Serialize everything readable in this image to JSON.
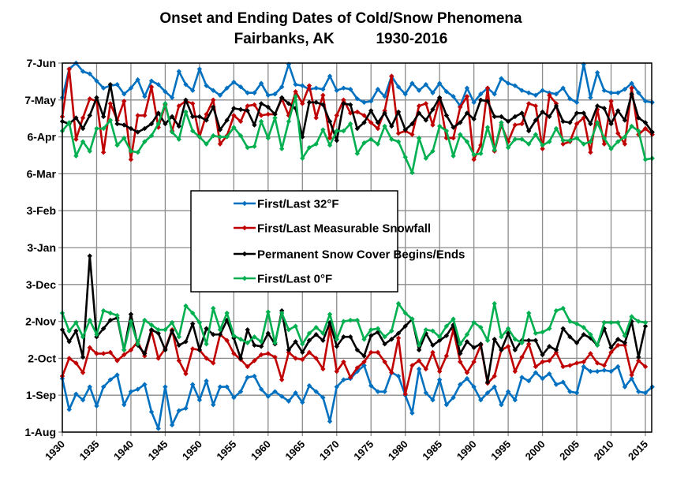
{
  "chart_data": {
    "type": "line",
    "title": [
      "Onset and Ending Dates of Cold/Snow Phenomena",
      "Fairbanks, AK          1930-2016"
    ],
    "xlabel": "",
    "ylabel": "",
    "x_start": 1930,
    "x_end": 2016,
    "xlim": [
      1930,
      2016
    ],
    "x_ticks": [
      1930,
      1935,
      1940,
      1945,
      1950,
      1955,
      1960,
      1965,
      1970,
      1975,
      1980,
      1985,
      1990,
      1995,
      2000,
      2005,
      2010,
      2015
    ],
    "ylim": [
      "1-Aug",
      "7-Jun"
    ],
    "y_ticks": [
      "1-Aug",
      "1-Sep",
      "2-Oct",
      "2-Nov",
      "3-Dec",
      "3-Jan",
      "3-Feb",
      "6-Mar",
      "6-Apr",
      "7-May",
      "7-Jun"
    ],
    "grid": true,
    "legend_position": "center-left",
    "series": [
      {
        "name": "First/Last 32°F",
        "color": "#0070C0",
        "first": [
          "15-Sep",
          "20-Aug",
          "2-Sep",
          "28-Aug",
          "8-Sep",
          "23-Aug",
          "8-Sep",
          "14-Sep",
          "18-Sep",
          "24-Aug",
          "4-Sep",
          "6-Sep",
          "10-Sep",
          "18-Aug",
          "4-Aug",
          "8-Sep",
          "7-Aug",
          "19-Aug",
          "21-Aug",
          "10-Sep",
          "28-Aug",
          "13-Sep",
          "24-Aug",
          "8-Sep",
          "8-Sep",
          "30-Aug",
          "4-Sep",
          "16-Sep",
          "17-Sep",
          "6-Sep",
          "31-Aug",
          "4-Sep",
          "31-Aug",
          "27-Aug",
          "3-Sep",
          "26-Aug",
          "9-Sep",
          "4-Sep",
          "30-Aug",
          "10-Aug",
          "8-Sep",
          "14-Sep",
          "15-Sep",
          "21-Sep",
          "26-Sep",
          "9-Sep",
          "4-Sep",
          "4-Sep",
          "20-Sep",
          "17-Sep",
          "1-Sep",
          "17-Aug",
          "23-Sep",
          "3-Sep",
          "28-Aug",
          "14-Sep",
          "24-Aug",
          "30-Aug",
          "10-Sep",
          "15-Sep",
          "8-Sep",
          "28-Aug",
          "3-Sep",
          "8-Sep",
          "24-Aug",
          "4-Sep",
          "28-Aug",
          "16-Sep",
          "13-Sep",
          "20-Sep",
          "15-Sep",
          "19-Sep",
          "10-Sep",
          "12-Sep",
          "4-Sep",
          "3-Sep",
          "25-Sep",
          "21-Sep",
          "21-Sep",
          "22-Sep",
          "21-Sep",
          "25-Sep",
          "8-Sep",
          "15-Sep",
          "4-Sep",
          "3-Sep",
          "8-Sep"
        ],
        "last": [
          "9-May",
          "2-Jun",
          "7-Jun",
          "31-May",
          "29-May",
          "23-May",
          "17-May",
          "19-May",
          "20-May",
          "12-May",
          "17-May",
          "24-May",
          "10-May",
          "23-May",
          "20-May",
          "14-May",
          "9-May",
          "31-May",
          "20-May",
          "15-May",
          "2-Jun",
          "19-May",
          "15-May",
          "11-May",
          "17-May",
          "22-May",
          "18-May",
          "13-May",
          "13-May",
          "21-May",
          "11-May",
          "12-May",
          "18-May",
          "6-Jun",
          "20-May",
          "19-May",
          "16-May",
          "17-May",
          "16-May",
          "27-May",
          "15-May",
          "17-May",
          "16-May",
          "8-May",
          "5-May",
          "6-May",
          "16-May",
          "10-May",
          "27-May",
          "18-May",
          "12-May",
          "21-May",
          "15-May",
          "20-May",
          "13-May",
          "21-May",
          "14-May",
          "10-May",
          "2-May",
          "17-May",
          "5-May",
          "12-May",
          "17-May",
          "12-May",
          "25-May",
          "21-May",
          "19-May",
          "15-May",
          "13-May",
          "11-May",
          "15-May",
          "13-May",
          "12-May",
          "17-May",
          "8-May",
          "5-May",
          "6-Jun",
          "9-May",
          "30-May",
          "15-May",
          "13-May",
          "13-May",
          "16-May",
          "21-May",
          "13-May",
          "6-May",
          "5-May"
        ]
      },
      {
        "name": "First/Last Measurable Snowfall",
        "color": "#C00000",
        "first": [
          "17-Sep",
          "2-Oct",
          "28-Sep",
          "20-Sep",
          "11-Oct",
          "6-Oct",
          "6-Oct",
          "7-Oct",
          "30-Sep",
          "5-Oct",
          "9-Oct",
          "16-Oct",
          "4-Oct",
          "25-Oct",
          "2-Oct",
          "10-Oct",
          "26-Oct",
          "30-Sep",
          "19-Sep",
          "10-Oct",
          "9-Oct",
          "2-Oct",
          "28-Sep",
          "22-Oct",
          "17-Oct",
          "6-Oct",
          "1-Oct",
          "25-Sep",
          "30-Sep",
          "5-Oct",
          "6-Oct",
          "3-Oct",
          "14-Sep",
          "7-Oct",
          "2-Oct",
          "1-Oct",
          "7-Oct",
          "2-Oct",
          "23-Sep",
          "27-Oct",
          "21-Sep",
          "29-Sep",
          "16-Sep",
          "24-Sep",
          "29-Sep",
          "7-Oct",
          "7-Oct",
          "29-Sep",
          "20-Sep",
          "19-Oct",
          "2-Sep",
          "26-Sep",
          "30-Sep",
          "23-Sep",
          "7-Oct",
          "21-Sep",
          "4-Oct",
          "26-Oct",
          "29-Sep",
          "20-Sep",
          "29-Sep",
          "13-Oct",
          "11-Sep",
          "17-Sep",
          "9-Oct",
          "12-Oct",
          "21-Sep",
          "3-Oct",
          "14-Oct",
          "25-Sep",
          "29-Sep",
          "30-Sep",
          "7-Oct",
          "25-Sep",
          "26-Sep",
          "28-Sep",
          "29-Sep",
          "6-Oct",
          "28-Sep",
          "26-Sep",
          "7-Oct",
          "13-Oct",
          "13-Oct",
          "18-Sep",
          "30-Sep",
          "25-Sep",
          null
        ],
        "last": [
          "23-Apr",
          "2-Jun",
          "4-Apr",
          "22-Apr",
          "8-May",
          "6-May",
          "24-Mar",
          "4-May",
          "20-Apr",
          "6-May",
          "18-Mar",
          "24-Apr",
          "24-Apr",
          "18-May",
          "14-Apr",
          "3-May",
          "11-Apr",
          "2-May",
          "6-May",
          "4-May",
          "6-Apr",
          "25-Apr",
          "7-May",
          "31-Mar",
          "7-Apr",
          "24-Apr",
          "19-Apr",
          "2-May",
          "3-May",
          "24-Apr",
          "25-Apr",
          "25-Apr",
          "8-May",
          "24-Apr",
          "14-May",
          "4-May",
          "19-May",
          "22-Apr",
          "11-May",
          "5-Apr",
          "24-Apr",
          "7-May",
          "26-Apr",
          "27-Apr",
          "24-Apr",
          "18-Apr",
          "13-Apr",
          "28-Apr",
          "27-May",
          "9-Apr",
          "11-Apr",
          "8-Apr",
          "2-May",
          "4-May",
          "16-Apr",
          "8-May",
          "5-Apr",
          "5-Apr",
          "1-May",
          "10-May",
          "18-Mar",
          "30-Mar",
          "17-May",
          "25-Mar",
          "16-Apr",
          "2-Apr",
          "16-Apr",
          "17-Apr",
          "4-May",
          "2-May",
          "27-Mar",
          "11-May",
          "4-May",
          "31-Mar",
          "2-Apr",
          "17-Apr",
          "22-Apr",
          "24-Mar",
          "29-Apr",
          "31-Mar",
          "6-May",
          "9-Apr",
          "31-Mar",
          "17-May",
          "8-Apr",
          "13-Apr",
          "8-Apr"
        ]
      },
      {
        "name": "Permanent Snow Cover Begins/Ends",
        "color": "#000000",
        "first": [
          "26-Oct",
          "16-Oct",
          "25-Oct",
          "3-Oct",
          "27-Dec",
          "20-Oct",
          "27-Oct",
          "3-Nov",
          "5-Nov",
          "9-Oct",
          "8-Nov",
          "13-Oct",
          "6-Oct",
          "26-Oct",
          "23-Oct",
          "9-Oct",
          "25-Oct",
          "13-Oct",
          "16-Oct",
          "31-Oct",
          "9-Oct",
          "27-Oct",
          "22-Oct",
          "22-Oct",
          "3-Nov",
          "19-Oct",
          "2-Oct",
          "26-Oct",
          "13-Oct",
          "12-Oct",
          "23-Oct",
          "14-Oct",
          "11-Nov",
          "9-Oct",
          "16-Oct",
          "7-Oct",
          "17-Oct",
          "22-Oct",
          "17-Oct",
          "1-Nov",
          "12-Oct",
          "20-Oct",
          "20-Oct",
          "9-Oct",
          "4-Oct",
          "21-Oct",
          "24-Oct",
          "14-Oct",
          "18-Oct",
          "23-Oct",
          "29-Oct",
          "4-Nov",
          "9-Oct",
          "23-Oct",
          "13-Oct",
          "17-Oct",
          "21-Oct",
          "30-Oct",
          "6-Oct",
          "16-Oct",
          "11-Oct",
          "14-Oct",
          "12-Sep",
          "18-Oct",
          "9-Oct",
          "23-Oct",
          "9-Oct",
          "17-Oct",
          "17-Oct",
          "17-Oct",
          "5-Oct",
          "12-Oct",
          "9-Oct",
          "27-Oct",
          "20-Oct",
          "15-Oct",
          "22-Oct",
          "19-Oct",
          "13-Oct",
          "27-Oct",
          "11-Oct",
          "18-Oct",
          "15-Oct",
          "2-Nov",
          "3-Oct",
          "29-Oct",
          null
        ],
        "last": [
          "19-Apr",
          "17-Apr",
          "22-Apr",
          "13-Apr",
          "24-Apr",
          "9-May",
          "23-Apr",
          "20-May",
          "17-Apr",
          "16-Apr",
          "13-Apr",
          "10-Apr",
          "13-Apr",
          "17-Apr",
          "26-Apr",
          "17-Apr",
          "23-Apr",
          "15-Apr",
          "7-May",
          "23-Apr",
          "23-Apr",
          "20-Apr",
          "1-May",
          "12-Apr",
          "20-Apr",
          "30-Apr",
          "29-Apr",
          "28-Apr",
          "16-Apr",
          "4-May",
          "1-May",
          "25-Apr",
          "9-May",
          "4-May",
          "30-Apr",
          "6-Apr",
          "5-May",
          "5-May",
          "3-May",
          "19-Apr",
          "3-Apr",
          "4-May",
          "3-May",
          "13-Apr",
          "18-Apr",
          "28-Apr",
          "18-Apr",
          "26-Apr",
          "15-Apr",
          "27-Apr",
          "12-Apr",
          "17-Apr",
          "26-Apr",
          "20-Apr",
          "29-Apr",
          "9-May",
          "24-Apr",
          "14-Apr",
          "18-Apr",
          "26-Apr",
          "21-Apr",
          "7-May",
          "6-May",
          "23-Apr",
          "23-Apr",
          "19-Apr",
          "23-Apr",
          "26-Apr",
          "11-Apr",
          "20-Apr",
          "27-Apr",
          "23-Apr",
          "2-May",
          "19-Apr",
          "18-Apr",
          "26-Apr",
          "26-Apr",
          "17-Apr",
          "2-May",
          "30-Apr",
          "17-Apr",
          "28-Apr",
          "20-Apr",
          "12-May",
          "22-Apr",
          "18-Apr",
          "10-Apr"
        ]
      },
      {
        "name": "First/Last 0°F",
        "color": "#00B050",
        "first": [
          "9-Nov",
          "25-Oct",
          "1-Nov",
          "20-Oct",
          "3-Nov",
          "22-Oct",
          "11-Nov",
          "9-Nov",
          "7-Nov",
          "9-Oct",
          "2-Nov",
          "14-Oct",
          "3-Nov",
          "30-Oct",
          "26-Oct",
          "26-Oct",
          "1-Nov",
          "20-Oct",
          "15-Nov",
          "9-Nov",
          "1-Nov",
          "14-Oct",
          "13-Nov",
          "26-Oct",
          "9-Nov",
          "21-Oct",
          "18-Oct",
          "15-Oct",
          "20-Oct",
          "16-Oct",
          "10-Nov",
          "15-Oct",
          "9-Nov",
          "26-Oct",
          "29-Oct",
          "14-Oct",
          "23-Oct",
          "28-Oct",
          "23-Oct",
          "8-Nov",
          "18-Oct",
          "2-Nov",
          "3-Nov",
          "3-Nov",
          "18-Oct",
          "26-Oct",
          "27-Oct",
          "20-Oct",
          "25-Oct",
          "17-Nov",
          "9-Nov",
          "4-Nov",
          "13-Oct",
          "26-Oct",
          "25-Oct",
          "20-Oct",
          "29-Oct",
          "4-Nov",
          "14-Oct",
          "22-Oct",
          "1-Nov",
          "28-Oct",
          "17-Oct",
          "17-Nov",
          "20-Oct",
          "27-Oct",
          "18-Oct",
          "15-Oct",
          "9-Nov",
          "23-Oct",
          "24-Oct",
          "27-Oct",
          "11-Nov",
          "13-Nov",
          "2-Nov",
          "31-Oct",
          "28-Oct",
          "22-Oct",
          "13-Oct",
          "1-Nov",
          "1-Nov",
          "1-Nov",
          "21-Oct",
          "6-Nov",
          "2-Nov",
          "1-Nov",
          null
        ],
        "last": [
          "11-Apr",
          "18-Apr",
          "21-Mar",
          "2-Apr",
          "25-Mar",
          "13-Apr",
          "13-Apr",
          "20-Apr",
          "30-Mar",
          "5-Apr",
          "25-Mar",
          "24-Mar",
          "2-Apr",
          "7-Apr",
          "17-Apr",
          "4-May",
          "10-Apr",
          "4-Apr",
          "27-Apr",
          "11-Apr",
          "6-Apr",
          "31-Mar",
          "7-Apr",
          "6-Apr",
          "6-Apr",
          "14-Apr",
          "7-Apr",
          "28-Mar",
          "29-Mar",
          "19-Apr",
          "5-Apr",
          "22-Apr",
          "27-Mar",
          "19-Apr",
          "10-May",
          "19-Mar",
          "28-Mar",
          "31-Mar",
          "12-Apr",
          "30-Mar",
          "11-Apr",
          "11-Apr",
          "17-Apr",
          "23-Mar",
          "1-Apr",
          "4-Apr",
          "31-Mar",
          "15-Apr",
          "4-Apr",
          "2-Apr",
          "20-Mar",
          "7-Mar",
          "5-Apr",
          "19-Mar",
          "25-Mar",
          "15-Apr",
          "11-Apr",
          "21-Mar",
          "8-Apr",
          "2-Apr",
          "22-Mar",
          "23-Mar",
          "14-Apr",
          "26-Mar",
          "18-Apr",
          "28-Mar",
          "4-Apr",
          "4-Apr",
          "31-Mar",
          "8-Apr",
          "30-Mar",
          "2-Apr",
          "13-Apr",
          "3-Apr",
          "3-Apr",
          "5-Apr",
          "31-Mar",
          "2-Apr",
          "18-Apr",
          "5-Apr",
          "27-Mar",
          "2-Apr",
          "6-Apr",
          "15-Apr",
          "11-Apr",
          "18-Mar",
          "19-Mar"
        ]
      }
    ]
  }
}
